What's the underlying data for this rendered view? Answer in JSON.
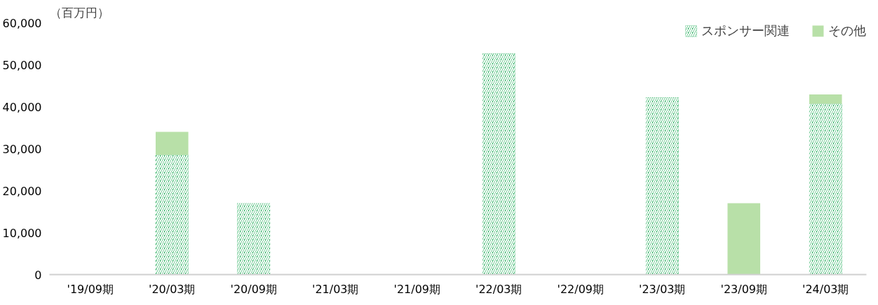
{
  "chart_data": {
    "type": "bar",
    "stacked": true,
    "ylabel": "（百万円）",
    "categories": [
      "'19/09期",
      "'20/03期",
      "'20/09期",
      "'21/03期",
      "'21/09期",
      "'22/03期",
      "'22/09期",
      "'23/03期",
      "'23/09期",
      "'24/03期"
    ],
    "series": [
      {
        "name": "スポンサー関連",
        "color": "#00a040",
        "values": [
          null,
          28500,
          17100,
          null,
          null,
          52700,
          null,
          42200,
          null,
          40700
        ]
      },
      {
        "name": "その他",
        "color": "#b8e0a8",
        "values": [
          null,
          5500,
          null,
          null,
          null,
          null,
          null,
          null,
          17000,
          2200
        ]
      }
    ],
    "ylim": [
      0,
      60000
    ],
    "yticks": [
      {
        "value": 0,
        "label": "0"
      },
      {
        "value": 10000,
        "label": "10,000"
      },
      {
        "value": 20000,
        "label": "20,000"
      },
      {
        "value": 30000,
        "label": "30,000"
      },
      {
        "value": 40000,
        "label": "40,000"
      },
      {
        "value": 50000,
        "label": "50,000"
      },
      {
        "value": 60000,
        "label": "60,000"
      }
    ],
    "grid": false,
    "legend": "top right"
  }
}
